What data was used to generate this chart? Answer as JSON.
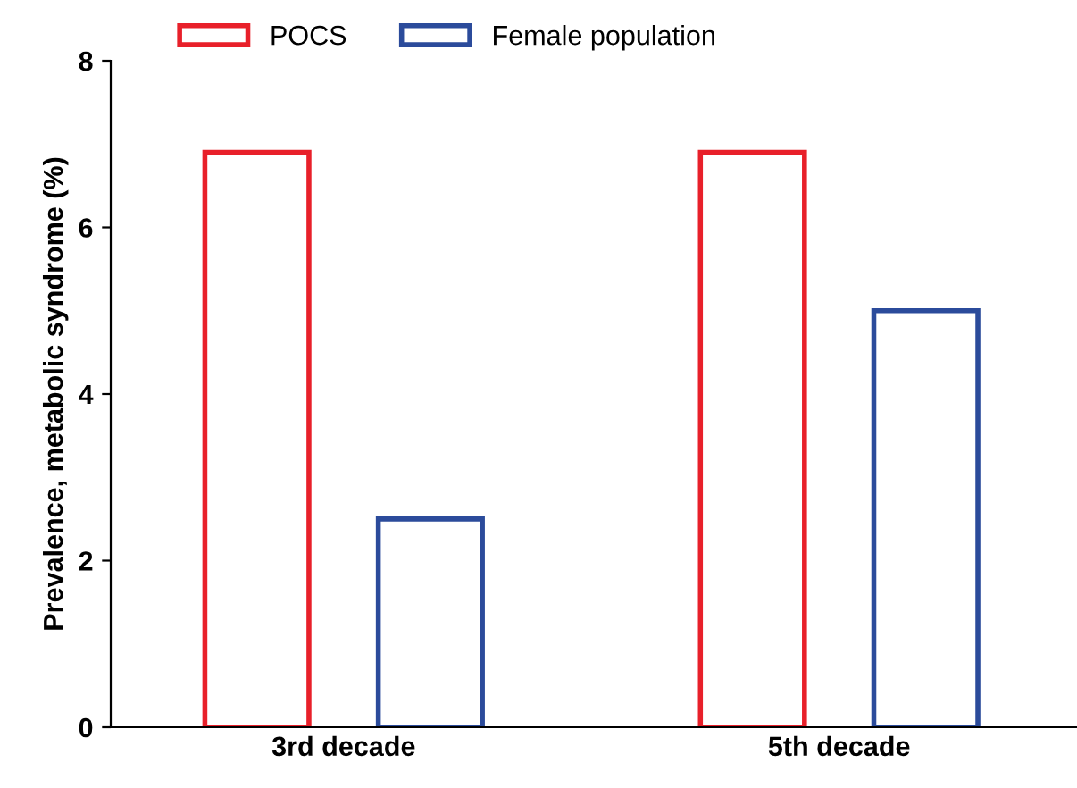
{
  "chart_data": {
    "type": "bar",
    "ylabel": "Prevalence, metabolic syndrome (%)",
    "categories": [
      "3rd decade",
      "5th decade"
    ],
    "series": [
      {
        "name": "POCS",
        "color": "#e8202a",
        "values": [
          6.9,
          6.9
        ]
      },
      {
        "name": "Female population",
        "color": "#2b4b9b",
        "values": [
          2.5,
          5.0
        ]
      }
    ],
    "ylim": [
      0,
      8
    ],
    "yticks": [
      0,
      2,
      4,
      6,
      8
    ],
    "grid": false,
    "legend": "top left"
  }
}
